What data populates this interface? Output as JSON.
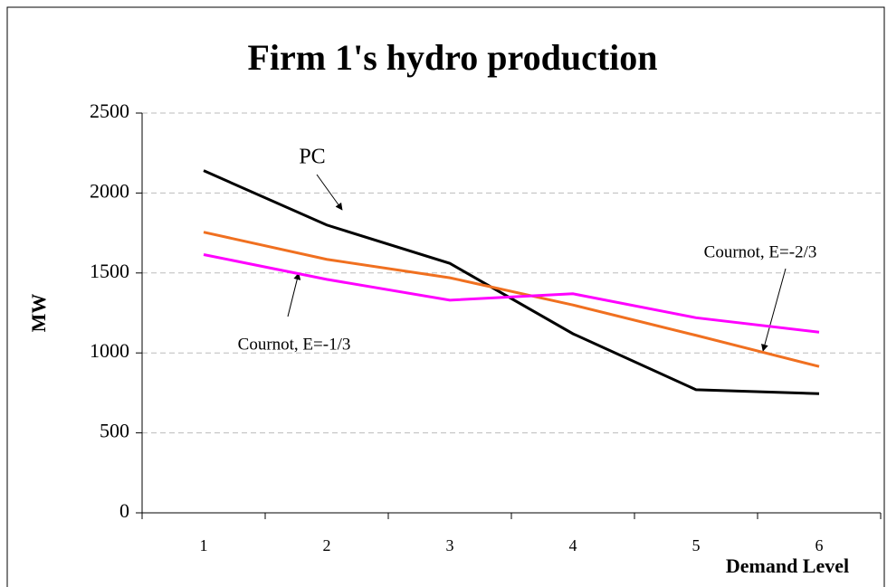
{
  "chart_data": {
    "type": "line",
    "title": "Firm 1's hydro production",
    "x_label": "Demand Level",
    "y_label": "MW",
    "categories": [
      "1",
      "2",
      "3",
      "4",
      "5",
      "6"
    ],
    "series": [
      {
        "name": "PC",
        "color": "#000000",
        "values": [
          2140,
          1800,
          1560,
          1120,
          770,
          745
        ]
      },
      {
        "name": "Cournot, E=-2/3",
        "color": "#f07020",
        "values": [
          1755,
          1585,
          1470,
          1300,
          1110,
          915
        ]
      },
      {
        "name": "Cournot, E=-1/3",
        "color": "#ff00ff",
        "values": [
          1615,
          1460,
          1330,
          1370,
          1220,
          1130
        ]
      }
    ],
    "ylim": [
      0,
      2500
    ],
    "yticks": [
      0,
      500,
      1000,
      1500,
      2000,
      2500
    ],
    "grid": true
  }
}
